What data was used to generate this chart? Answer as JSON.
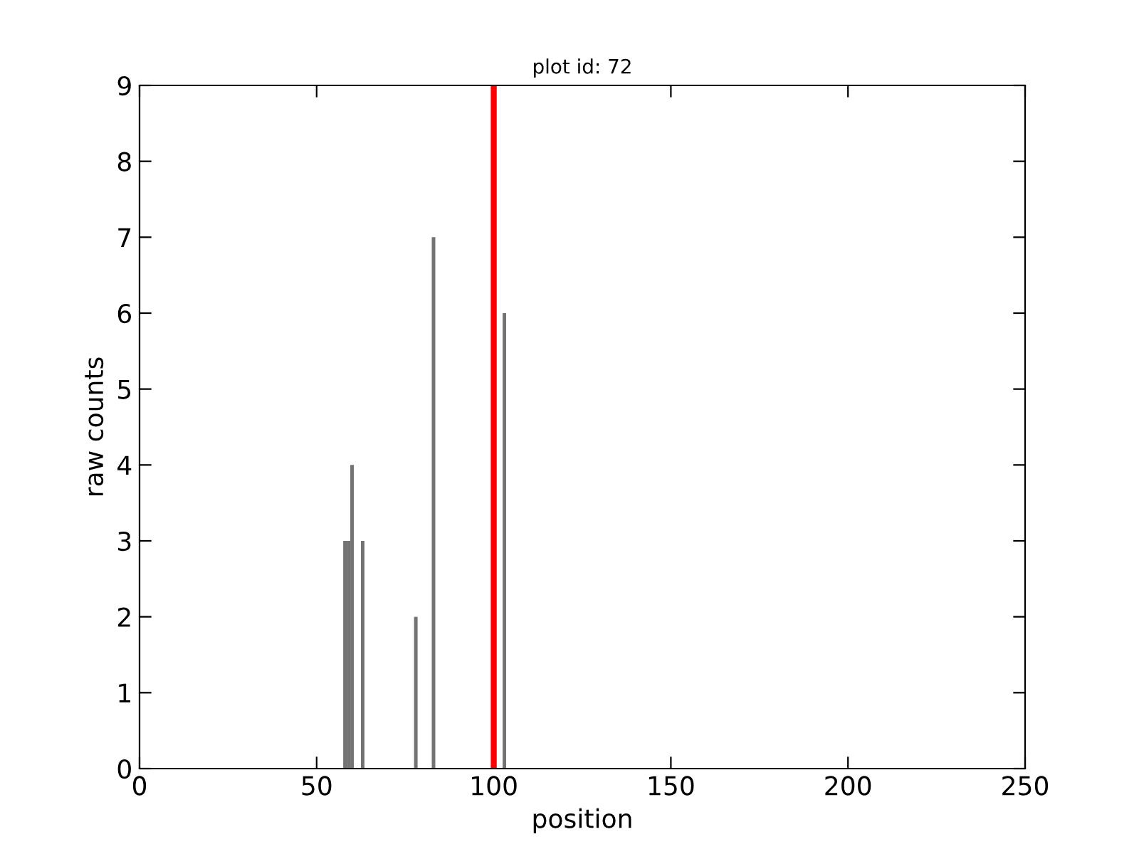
{
  "chart_data": {
    "type": "bar",
    "title": "plot id: 72",
    "xlabel": "position",
    "ylabel": "raw counts",
    "x": [
      58,
      59,
      60,
      63,
      78,
      83,
      103
    ],
    "series": [
      {
        "color": "#737373",
        "values": [
          3,
          3,
          4,
          3,
          2,
          7,
          6
        ]
      }
    ],
    "xlim": [
      0,
      250
    ],
    "xticks": [
      0,
      50,
      100,
      150,
      200,
      250
    ],
    "ylim": [
      0,
      9
    ],
    "yticks": [
      0,
      1,
      2,
      3,
      4,
      5,
      6,
      7,
      8,
      9
    ],
    "ref_lines": [
      {
        "axis": "x",
        "value": 100,
        "color": "#ff0000"
      }
    ],
    "grid": false,
    "legend": false
  }
}
